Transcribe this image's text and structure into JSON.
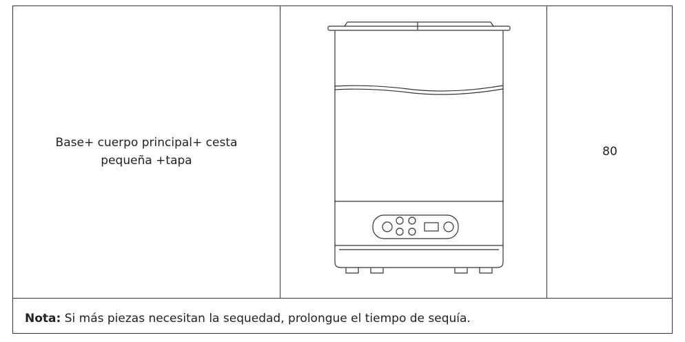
{
  "table": {
    "rows": [
      {
        "description": "Base+ cuerpo principal+ cesta pequeña +tapa",
        "quantity": 80
      }
    ],
    "note": {
      "label": "Nota:",
      "text": "Si más piezas necesitan la sequedad, prolongue el tiempo de sequía."
    }
  }
}
